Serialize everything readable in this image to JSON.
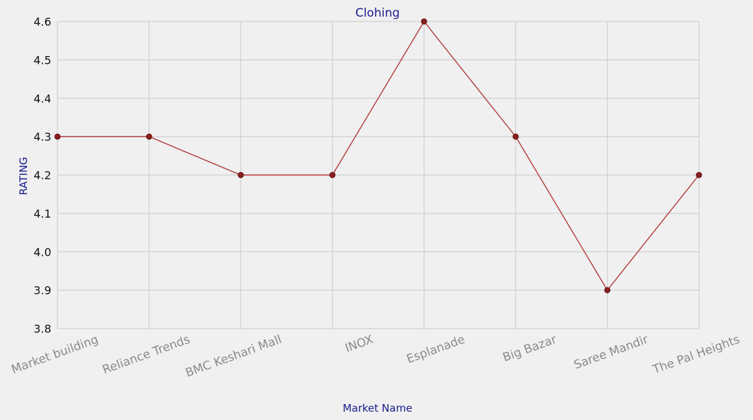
{
  "chart_data": {
    "type": "line",
    "title": "Clohing",
    "xlabel": "Market Name",
    "ylabel": "RATING",
    "categories": [
      "Market building",
      "Reliance Trends",
      "BMC Keshari Mall",
      "INOX",
      "Esplanade",
      "Big Bazar",
      "Saree Mandir",
      "The Pal Heights"
    ],
    "series": [
      {
        "values": [
          4.3,
          4.3,
          4.2,
          4.2,
          4.6,
          4.3,
          3.9,
          4.2
        ]
      }
    ],
    "ylim": [
      3.8,
      4.6
    ],
    "yticks": [
      "3.8",
      "3.9",
      "4.0",
      "4.1",
      "4.2",
      "4.3",
      "4.4",
      "4.5",
      "4.6"
    ],
    "grid": true,
    "colors": {
      "line": "#b03a3a",
      "marker": "#8b1e1e",
      "grid": "#cfcfcf",
      "background": "#f0f0f0",
      "label": "#1a1a8c"
    }
  }
}
